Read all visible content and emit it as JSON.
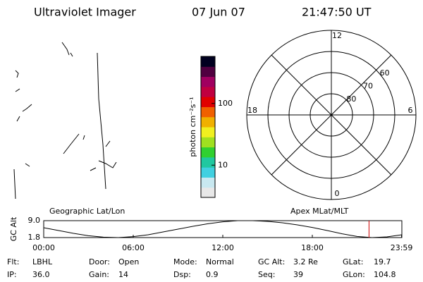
{
  "header": {
    "title": "Ultraviolet Imager",
    "date": "07 Jun 07",
    "time": "21:47:50 UT"
  },
  "colorbar": {
    "label": "photon cm⁻²s⁻¹",
    "log": true,
    "lim": [
      3,
      580
    ],
    "ticks": [
      10,
      100
    ],
    "colors": [
      "#e8e8e8",
      "#c8e8f0",
      "#40d0e0",
      "#20c8a0",
      "#30d030",
      "#a0e020",
      "#f0f020",
      "#f0b000",
      "#f06000",
      "#e00000",
      "#c00040",
      "#a00060",
      "#500040",
      "#000020"
    ]
  },
  "polar": {
    "lat_rings": [
      50,
      60,
      70,
      80
    ],
    "lat_labels": [
      80,
      70,
      60
    ],
    "mlt_labels": [
      12,
      18,
      6,
      0
    ]
  },
  "altitude": {
    "type": "line",
    "ylabel": "GC Alt",
    "left_label": "Geographic Lat/Lon",
    "right_label": "Apex MLat/MLT",
    "x": [
      0,
      1,
      2,
      3,
      4,
      5,
      6,
      7,
      8,
      9,
      10,
      11,
      12,
      13,
      14,
      15,
      16,
      17,
      18,
      19,
      20,
      21,
      22,
      23,
      24
    ],
    "values": [
      6.0,
      4.8,
      3.6,
      2.6,
      2.0,
      1.8,
      2.2,
      3.0,
      4.2,
      5.4,
      6.6,
      7.7,
      8.5,
      9.0,
      9.0,
      8.7,
      8.1,
      7.2,
      6.1,
      4.8,
      3.4,
      2.3,
      1.8,
      2.1,
      3.0
    ],
    "current": 21.8,
    "xlim": [
      0,
      24
    ],
    "xticks": [
      {
        "value": 0,
        "label": "00:00"
      },
      {
        "value": 6,
        "label": "06:00"
      },
      {
        "value": 12,
        "label": "12:00"
      },
      {
        "value": 18,
        "label": "18:00"
      },
      {
        "value": 23.98,
        "label": "23:59"
      }
    ],
    "ylim": [
      1.8,
      9.0
    ],
    "yticks": [
      1.8,
      {
        "value": 9.0,
        "label": "9.0"
      }
    ]
  },
  "info": {
    "rows": [
      [
        [
          "Flt:",
          "LBHL"
        ],
        [
          "Door:",
          "Open"
        ],
        [
          "Mode:",
          "Normal"
        ],
        [
          "GC Alt:",
          "3.2 Re"
        ],
        [
          "GLat:",
          "19.7"
        ]
      ],
      [
        [
          "IP:",
          "36.0"
        ],
        [
          "Gain:",
          "14"
        ],
        [
          "Dsp:",
          "0.9"
        ],
        [
          "Seq:",
          "39"
        ],
        [
          "GLon:",
          "104.8"
        ]
      ]
    ]
  }
}
